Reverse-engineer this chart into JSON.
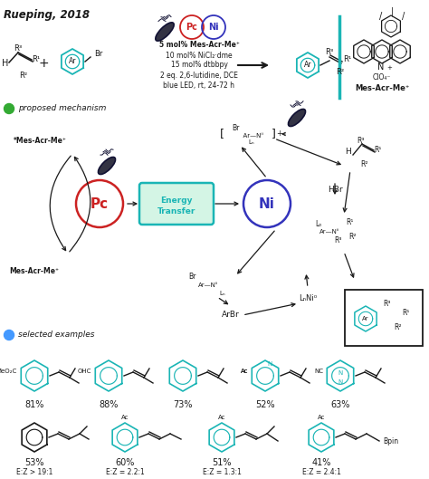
{
  "title": "Rueping, 2018",
  "background_color": "#ffffff",
  "teal_color": "#1ab5b5",
  "dark_color": "#1a1a1a",
  "red_color": "#cc2222",
  "blue_color": "#3333bb",
  "green_color": "#33aa33",
  "light_blue_color": "#4499ff",
  "figsize": [
    4.74,
    5.29
  ],
  "dpi": 100,
  "conditions": [
    "5 mol% Mes-Acr-Me⁺",
    "10 mol% NiCl₂·dme",
    "15 mol% dtbbpy",
    "2 eq. 2,6-lutidine, DCE",
    "blue LED, rt, 24-72 h"
  ],
  "ex1_yields": [
    "81%",
    "88%",
    "73%",
    "52%",
    "63%"
  ],
  "ex1_groups": [
    "MeO₂C",
    "OHC",
    "",
    "Ac",
    "NC"
  ],
  "ex2_yields": [
    "53%",
    "60%",
    "51%",
    "41%"
  ],
  "ex2_ez": [
    "E:Z > 19:1",
    "E:Z = 2.2:1",
    "E:Z = 1.3:1",
    "E:Z = 2.4:1"
  ],
  "ex2_groups": [
    "",
    "Ac",
    "Ac",
    "Ac"
  ]
}
